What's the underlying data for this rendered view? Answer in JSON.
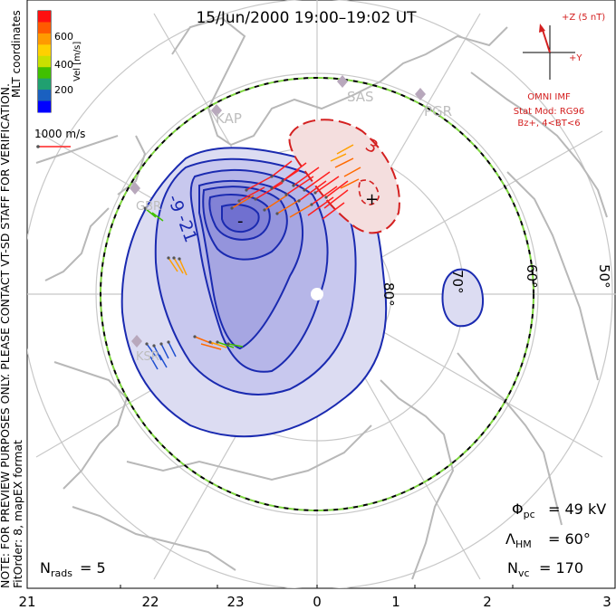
{
  "title": "15/Jun/2000 19:00–19:02 UT",
  "colorbar": {
    "title": "Vel [m/s]",
    "ticks": [
      "600",
      "400",
      "200"
    ],
    "colors": [
      "#ff1010",
      "#ff5a00",
      "#ff9a00",
      "#ffd000",
      "#c8e000",
      "#40c000",
      "#20a070",
      "#1a60c0",
      "#0000ff"
    ]
  },
  "coordinates_label": "MLT coordinates",
  "scale_vector": "1000 m/s",
  "imf": {
    "z_label": "+Z (5 nT)",
    "y_label": "+Y",
    "source": "OMNI IMF",
    "model_line1": "Stat Mod: RG96",
    "model_line2": "Bz+, 4<BT<6"
  },
  "stations": [
    "KAP",
    "SAS",
    "PGR",
    "GBR",
    "KSR"
  ],
  "latitude_labels": [
    "80°",
    "70°",
    "60°",
    "50°"
  ],
  "contour_labels": [
    "3",
    "-9",
    "-21",
    "-",
    "+"
  ],
  "note_line1": "NOTE: FOR PREVIEW PURPOSES ONLY. PLEASE CONTACT VT-SD STAFF FOR VERIFICATION.",
  "note_line2": "FitOrder: 8, mapEX format",
  "stats": {
    "phi_pc": "= 49 kV",
    "lambda_hm": "= 60°",
    "n_vc": "= 170",
    "n_rads": "= 5"
  },
  "mlt_axis": [
    "21",
    "22",
    "23",
    "0",
    "1",
    "2",
    "3"
  ]
}
